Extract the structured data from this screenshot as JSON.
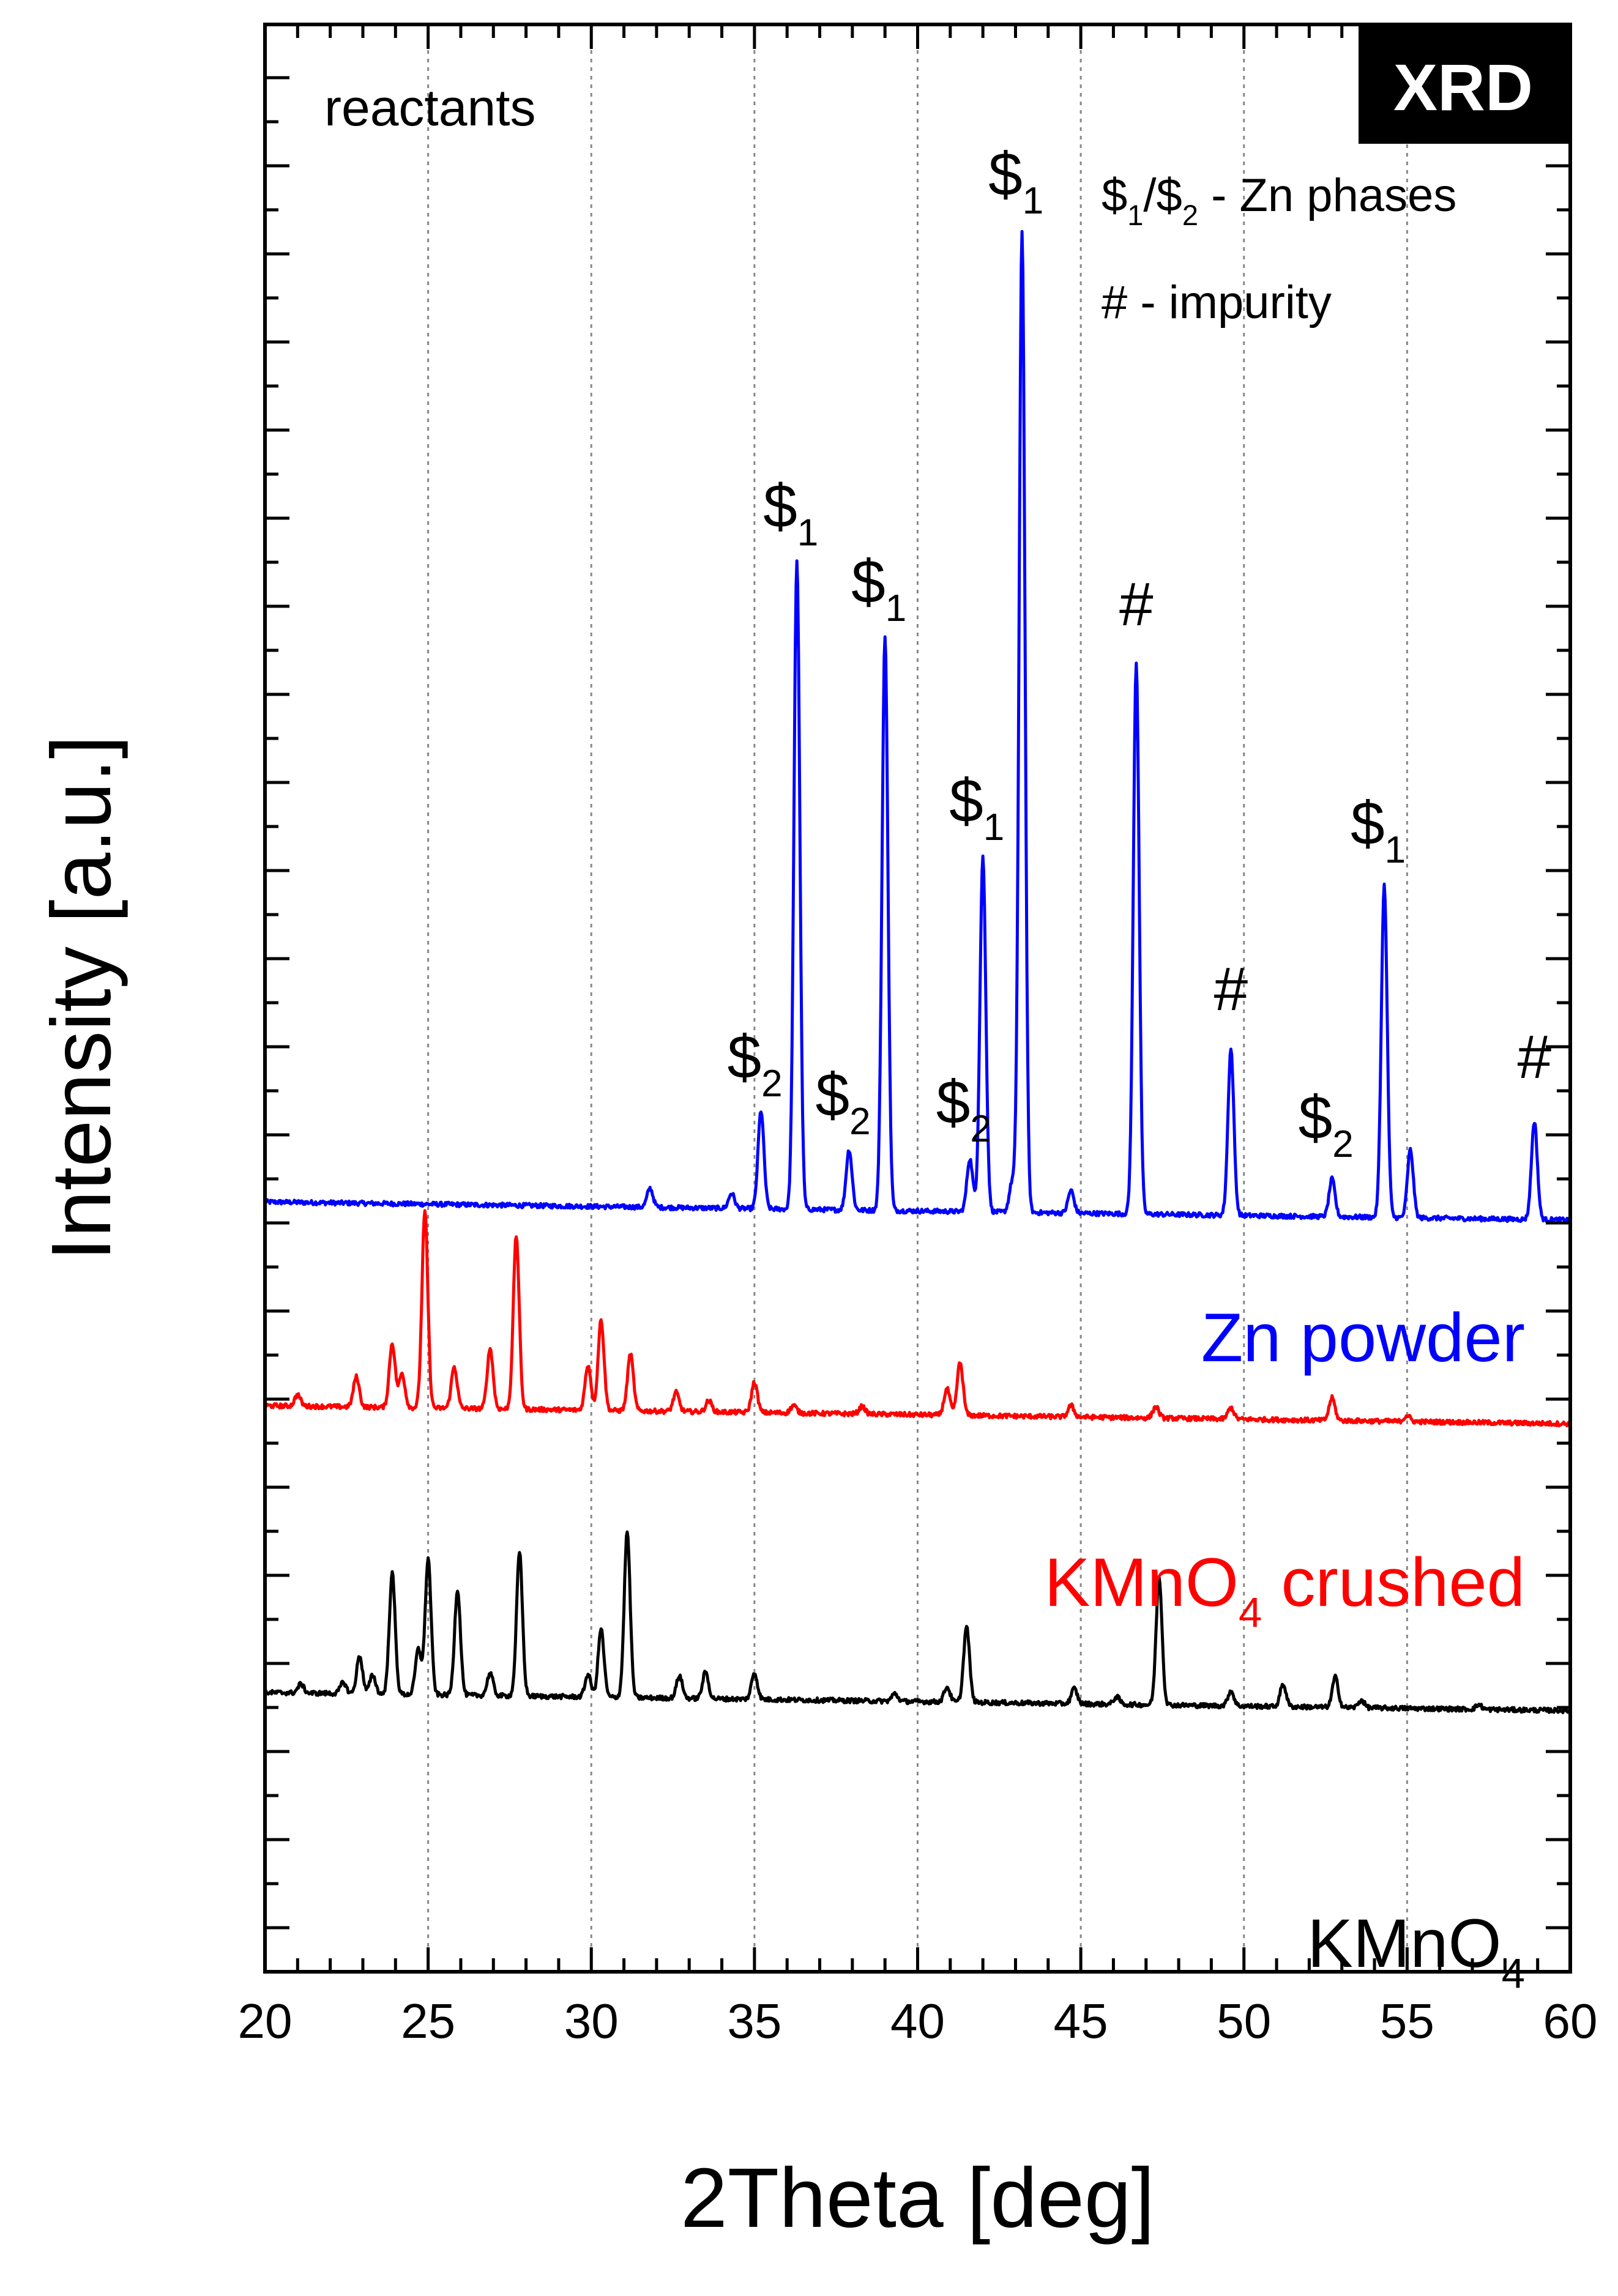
{
  "chart_data": {
    "type": "line",
    "badge": "XRD",
    "panel_label": "reactants",
    "xlabel": "2Theta [deg]",
    "ylabel": "Intensity [a.u.]",
    "xlim": [
      20,
      60
    ],
    "x_ticks": [
      20,
      25,
      30,
      35,
      40,
      45,
      50,
      55,
      60
    ],
    "x_tick_labels": [
      "20",
      "25",
      "30",
      "35",
      "40",
      "45",
      "50",
      "55",
      "60"
    ],
    "grid": "vertical-dashed",
    "legend_lines": [
      {
        "parts": [
          "$",
          "1",
          "/$",
          "2",
          " - Zn phases"
        ]
      },
      {
        "parts": [
          "# - impurity"
        ]
      }
    ],
    "series": [
      {
        "name": "Zn powder",
        "label_parts": [
          "Zn powder"
        ],
        "color": "#0000ff",
        "baseline": 0.0,
        "peaks": [
          {
            "x": 31.8,
            "h": 0.25
          },
          {
            "x": 34.3,
            "h": 0.2
          },
          {
            "x": 35.2,
            "h": 1.3
          },
          {
            "x": 36.3,
            "h": 8.6
          },
          {
            "x": 37.9,
            "h": 0.8
          },
          {
            "x": 39.0,
            "h": 7.6
          },
          {
            "x": 41.6,
            "h": 0.7
          },
          {
            "x": 42.0,
            "h": 4.7
          },
          {
            "x": 42.9,
            "h": 0.4
          },
          {
            "x": 43.2,
            "h": 13.0
          },
          {
            "x": 44.7,
            "h": 0.3
          },
          {
            "x": 46.7,
            "h": 7.3
          },
          {
            "x": 49.6,
            "h": 2.2
          },
          {
            "x": 52.7,
            "h": 0.5
          },
          {
            "x": 54.3,
            "h": 4.4
          },
          {
            "x": 55.1,
            "h": 0.9
          },
          {
            "x": 58.9,
            "h": 1.3
          }
        ],
        "peak_labels": [
          {
            "x": 35.2,
            "sym": "$",
            "sub": "2"
          },
          {
            "x": 36.3,
            "sym": "$",
            "sub": "1"
          },
          {
            "x": 37.9,
            "sym": "$",
            "sub": "2"
          },
          {
            "x": 39.0,
            "sym": "$",
            "sub": "1"
          },
          {
            "x": 41.6,
            "sym": "$",
            "sub": "2"
          },
          {
            "x": 42.0,
            "sym": "$",
            "sub": "1"
          },
          {
            "x": 43.2,
            "sym": "$",
            "sub": "1"
          },
          {
            "x": 46.7,
            "sym": "#",
            "sub": ""
          },
          {
            "x": 49.6,
            "sym": "#",
            "sub": ""
          },
          {
            "x": 52.7,
            "sym": "$",
            "sub": "2"
          },
          {
            "x": 54.3,
            "sym": "$",
            "sub": "1"
          },
          {
            "x": 58.9,
            "sym": "#",
            "sub": ""
          }
        ]
      },
      {
        "name": "KMnO4 crushed",
        "label_parts": [
          "KMnO",
          "4",
          " crushed"
        ],
        "color": "#ff0000",
        "baseline": -2.7,
        "peaks": [
          {
            "x": 21.0,
            "h": 0.15
          },
          {
            "x": 22.8,
            "h": 0.4
          },
          {
            "x": 23.9,
            "h": 0.85
          },
          {
            "x": 24.2,
            "h": 0.45
          },
          {
            "x": 24.9,
            "h": 2.6
          },
          {
            "x": 25.8,
            "h": 0.55
          },
          {
            "x": 26.9,
            "h": 0.8
          },
          {
            "x": 27.7,
            "h": 2.3
          },
          {
            "x": 29.9,
            "h": 0.6
          },
          {
            "x": 30.3,
            "h": 1.2
          },
          {
            "x": 31.2,
            "h": 0.75
          },
          {
            "x": 32.6,
            "h": 0.25
          },
          {
            "x": 33.6,
            "h": 0.15
          },
          {
            "x": 35.0,
            "h": 0.4
          },
          {
            "x": 36.2,
            "h": 0.1
          },
          {
            "x": 38.3,
            "h": 0.1
          },
          {
            "x": 40.9,
            "h": 0.35
          },
          {
            "x": 41.3,
            "h": 0.7
          },
          {
            "x": 44.7,
            "h": 0.15
          },
          {
            "x": 47.3,
            "h": 0.15
          },
          {
            "x": 49.6,
            "h": 0.15
          },
          {
            "x": 52.7,
            "h": 0.3
          },
          {
            "x": 55.0,
            "h": 0.08
          }
        ]
      },
      {
        "name": "KMnO4",
        "label_parts": [
          "KMnO",
          "4",
          ""
        ],
        "color": "#000000",
        "baseline": -6.5,
        "peaks": [
          {
            "x": 21.1,
            "h": 0.12
          },
          {
            "x": 22.4,
            "h": 0.15
          },
          {
            "x": 22.9,
            "h": 0.5
          },
          {
            "x": 23.3,
            "h": 0.25
          },
          {
            "x": 23.9,
            "h": 1.6
          },
          {
            "x": 24.7,
            "h": 0.6
          },
          {
            "x": 25.0,
            "h": 1.8
          },
          {
            "x": 25.9,
            "h": 1.4
          },
          {
            "x": 26.9,
            "h": 0.3
          },
          {
            "x": 27.8,
            "h": 1.9
          },
          {
            "x": 29.9,
            "h": 0.3
          },
          {
            "x": 30.3,
            "h": 0.9
          },
          {
            "x": 31.1,
            "h": 2.2
          },
          {
            "x": 32.7,
            "h": 0.3
          },
          {
            "x": 33.5,
            "h": 0.35
          },
          {
            "x": 35.0,
            "h": 0.35
          },
          {
            "x": 39.3,
            "h": 0.1
          },
          {
            "x": 40.9,
            "h": 0.2
          },
          {
            "x": 41.5,
            "h": 1.0
          },
          {
            "x": 44.8,
            "h": 0.2
          },
          {
            "x": 46.1,
            "h": 0.1
          },
          {
            "x": 47.4,
            "h": 1.7
          },
          {
            "x": 49.6,
            "h": 0.2
          },
          {
            "x": 51.2,
            "h": 0.3
          },
          {
            "x": 52.8,
            "h": 0.4
          },
          {
            "x": 53.6,
            "h": 0.1
          },
          {
            "x": 57.2,
            "h": 0.06
          }
        ]
      }
    ]
  }
}
